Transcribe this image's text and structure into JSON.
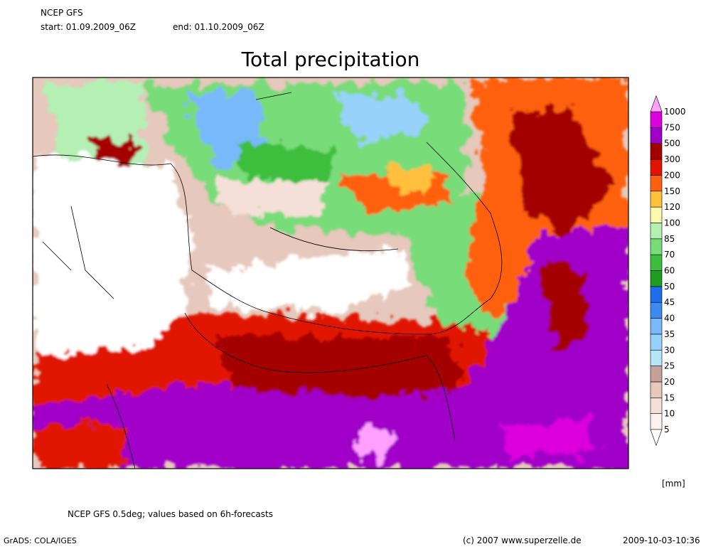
{
  "header": {
    "model": "NCEP GFS",
    "start": "start: 01.09.2009_06Z",
    "end": "end: 01.10.2009_06Z"
  },
  "title": "Total precipitation",
  "colorbar": {
    "levels": [
      5,
      10,
      15,
      20,
      25,
      30,
      35,
      40,
      45,
      50,
      60,
      70,
      85,
      100,
      120,
      150,
      200,
      300,
      500,
      750,
      1000
    ],
    "colors": [
      "#ffffff",
      "#fdf2ee",
      "#f4e0d8",
      "#e6c8bc",
      "#c8a09a",
      "#b4e6fa",
      "#96d2fa",
      "#78b9fa",
      "#3c8cf0",
      "#1e6eeb",
      "#1e9e1e",
      "#3cbe3c",
      "#78dc78",
      "#b4f0b4",
      "#fffaaa",
      "#ffc03c",
      "#ff6010",
      "#e11400",
      "#a50000",
      "#a000c8",
      "#dc00dc",
      "#ffa0ff"
    ],
    "unit": "[mm]"
  },
  "footer": {
    "note": "NCEP GFS 0.5deg; values based on 6h-forecasts",
    "grads": "GrADS: COLA/IGES",
    "copyright": "(c) 2007 www.superzelle.de",
    "timestamp": "2009-10-03-10:36"
  }
}
